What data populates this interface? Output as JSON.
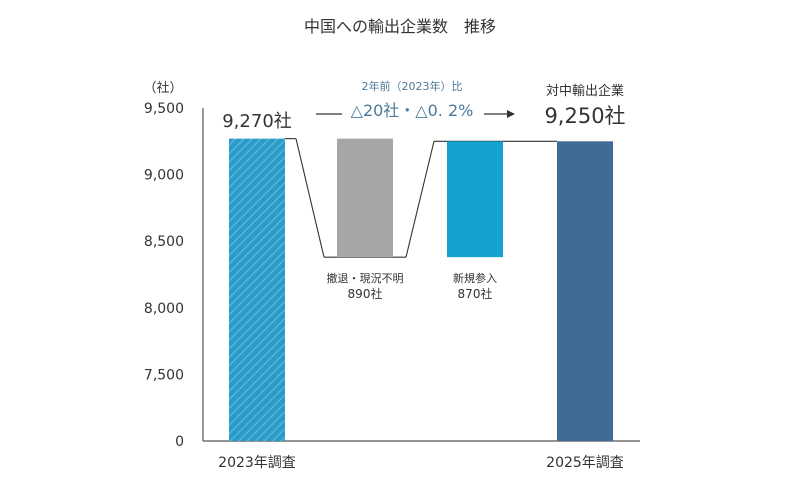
{
  "colors": {
    "bar_2023": "#2a9bc7",
    "bar_2023_hatch": "#5fb8dd",
    "bar_exit": "#a6a6a6",
    "bar_entry": "#14a3d1",
    "bar_2025": "#3f6b94",
    "axis_text": "#333333",
    "axis_line": "#555555",
    "connector": "#333333",
    "annotation_text": "#333333",
    "change_text": "#4a7a9a"
  },
  "chart_data": {
    "type": "bar",
    "title": "中国への輸出企業数　推移",
    "unit_label": "（社）",
    "yticks": [
      "9,500",
      "9,000",
      "8,500",
      "8,000",
      "7,500",
      "0"
    ],
    "ylim": [
      7250,
      9500
    ],
    "axis_break": true,
    "categories": [
      "2023年調査",
      "撤退・現況不明",
      "新規参入",
      "2025年調査"
    ],
    "x_labels": [
      "2023年調査",
      "",
      "",
      "2025年調査"
    ],
    "values": [
      9270,
      -890,
      870,
      9250
    ],
    "levels": {
      "start": 9270,
      "after_exit": 8380,
      "end": 9250
    },
    "labels": {
      "start_value": "9,270社",
      "exit_name": "撤退・現況不明",
      "exit_value": "890社",
      "entry_name": "新規参入",
      "entry_value": "870社",
      "end_caption": "対中輸出企業",
      "end_value": "9,250社"
    },
    "change_note": {
      "caption": "2年前（2023年）比",
      "value": "△20社・△0. 2%"
    }
  }
}
